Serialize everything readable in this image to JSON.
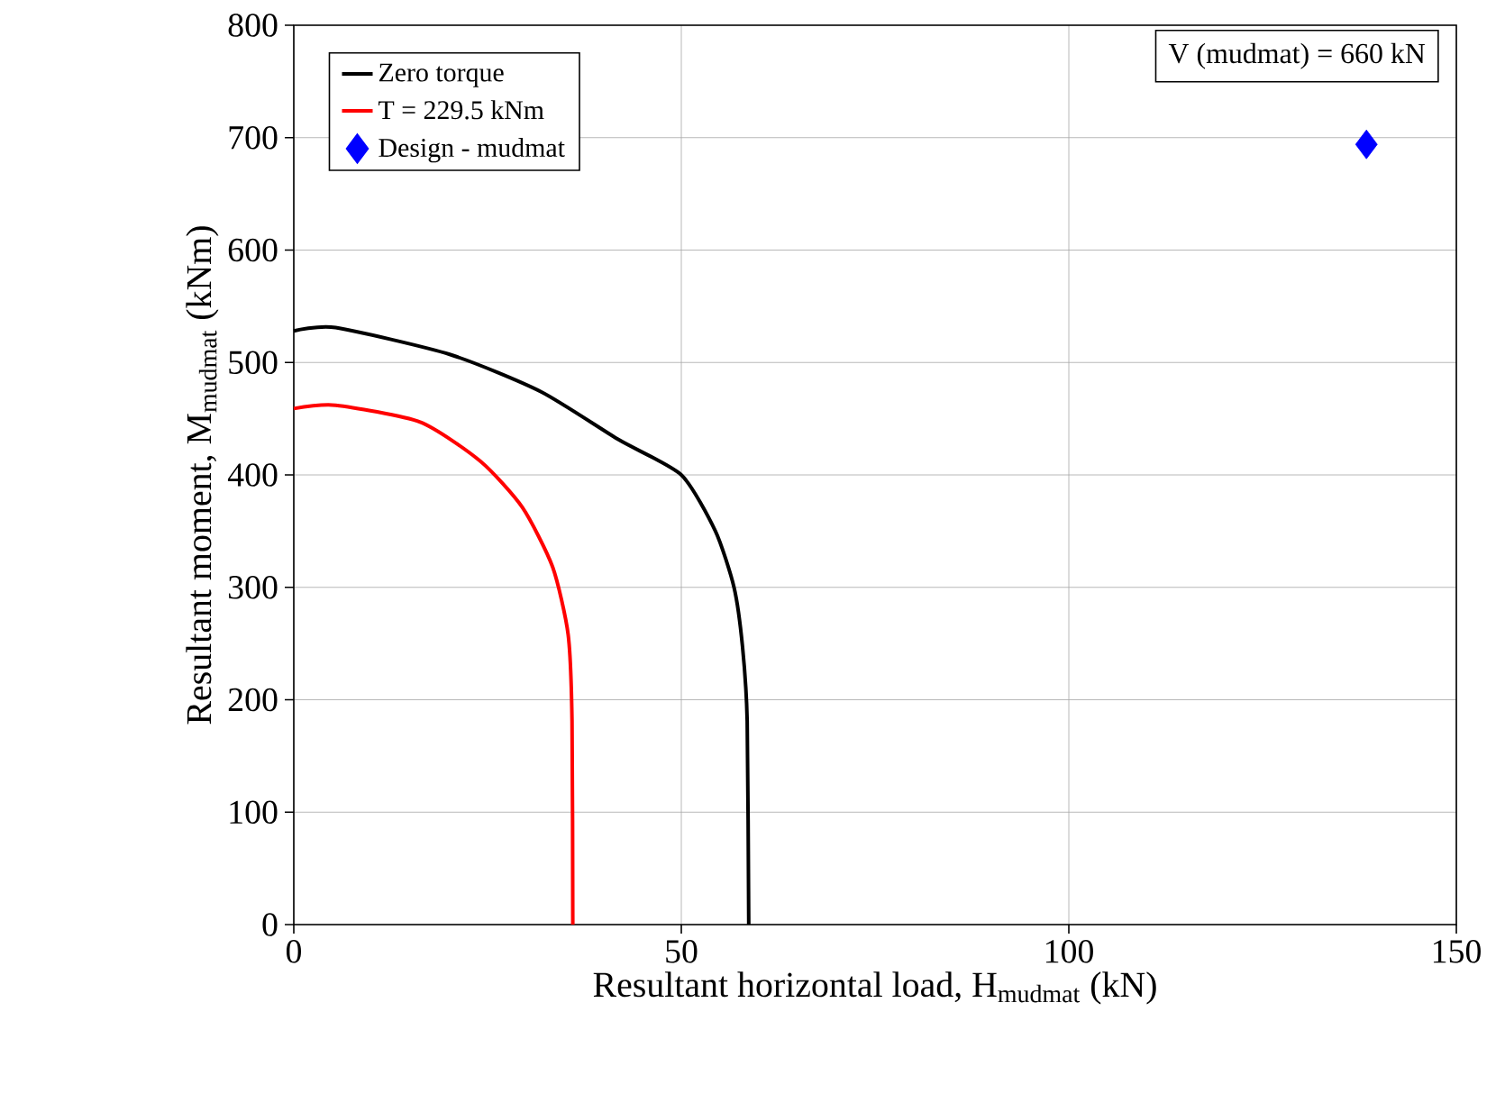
{
  "chart_data": {
    "type": "line",
    "xlabel": "Resultant horizontal load, H$_{mudmat}$ (kN)",
    "ylabel": "Resultant moment, M$_{mudmat}$ (kNm)",
    "xlim": [
      0,
      150
    ],
    "xticks": [
      0,
      50,
      100,
      150
    ],
    "ylim": [
      0,
      800
    ],
    "yticks": [
      0,
      100,
      200,
      300,
      400,
      500,
      600,
      700,
      800
    ],
    "grid": true,
    "legend": "top left",
    "marker": "none",
    "line_style": "solid",
    "annotations": [
      "V (mudmat) = 660 kN"
    ],
    "series": [
      {
        "name": "Zero torque",
        "color": "#000000",
        "x": [
          0,
          5.4,
          20.2,
          31.9,
          42,
          50,
          54.4,
          56.8,
          57.9,
          58.5,
          58.7
        ],
        "values": [
          528,
          531,
          507,
          474,
          431,
          400,
          350,
          300,
          247,
          181,
          0
        ]
      },
      {
        "name": "T = 229.5 kNm",
        "color": "#ff0000",
        "x": [
          0,
          5.4,
          16.3,
          24.1,
          29.5,
          33.4,
          35.4,
          35.9,
          36
        ],
        "values": [
          459,
          462,
          447,
          412,
          371,
          318,
          258,
          181,
          0
        ]
      },
      {
        "name": "Design - mudmat",
        "type": "scatter",
        "marker": "diamond",
        "color": "#0000ff",
        "x": [
          138.4
        ],
        "values": [
          694
        ]
      }
    ]
  }
}
